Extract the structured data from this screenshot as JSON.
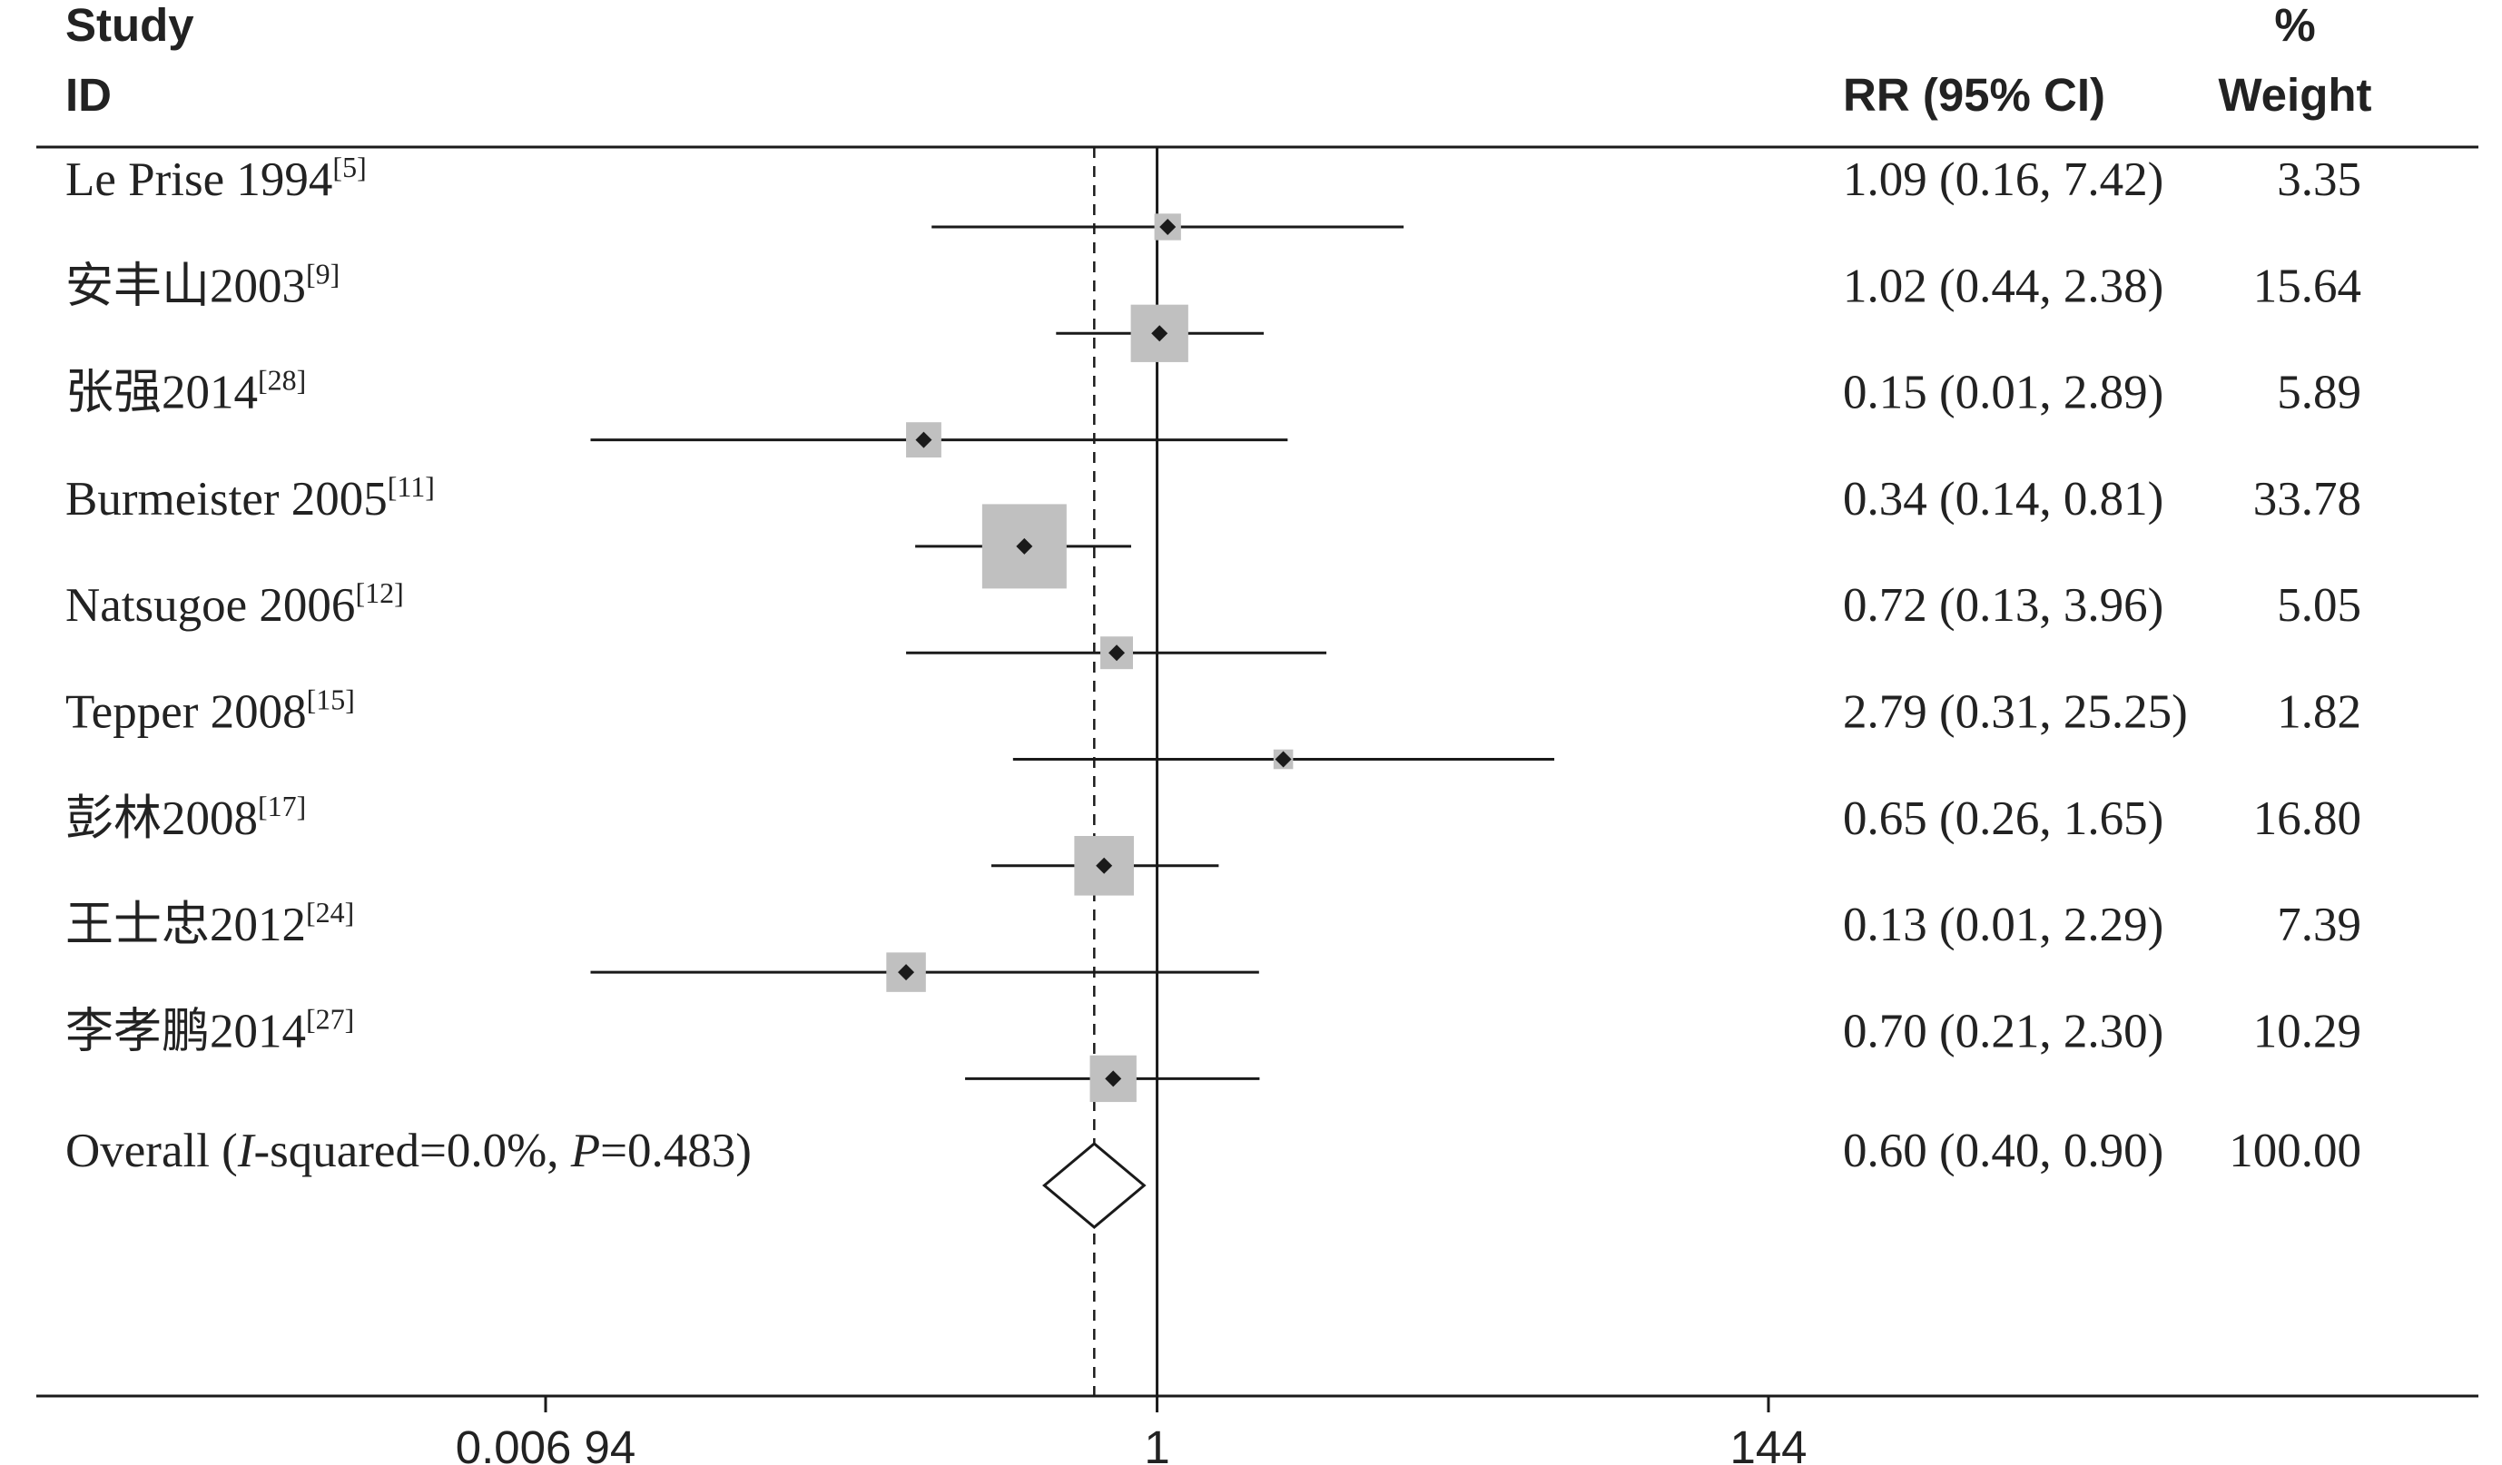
{
  "headers": {
    "study_line1": "Study",
    "study_line2": "ID",
    "rr_label": "RR (95% CI)",
    "weight_line1": "%",
    "weight_line2": "Weight"
  },
  "chart_data": {
    "type": "forest",
    "scale": "log",
    "xlim": [
      0.00694,
      144
    ],
    "null_line": 1,
    "pooled_line": 0.6,
    "x_ticks": [
      {
        "value": 0.00694,
        "label": "0.006 94"
      },
      {
        "value": 1,
        "label": "1"
      },
      {
        "value": 144,
        "label": "144"
      }
    ],
    "studies": [
      {
        "name": "Le Prise 1994",
        "ref": "[5]",
        "rr": 1.09,
        "lo": 0.16,
        "hi": 7.42,
        "ci_text": "1.09 (0.16, 7.42)",
        "weight": 3.35,
        "weight_text": "3.35"
      },
      {
        "name": "安丰山2003",
        "ref": "[9]",
        "rr": 1.02,
        "lo": 0.44,
        "hi": 2.38,
        "ci_text": "1.02 (0.44, 2.38)",
        "weight": 15.64,
        "weight_text": "15.64"
      },
      {
        "name": "张强2014",
        "ref": "[28]",
        "rr": 0.15,
        "lo": 0.01,
        "hi": 2.89,
        "ci_text": "0.15 (0.01, 2.89)",
        "weight": 5.89,
        "weight_text": "5.89"
      },
      {
        "name": "Burmeister 2005",
        "ref": "[11]",
        "rr": 0.34,
        "lo": 0.14,
        "hi": 0.81,
        "ci_text": "0.34 (0.14, 0.81)",
        "weight": 33.78,
        "weight_text": "33.78"
      },
      {
        "name": "Natsugoe 2006",
        "ref": "[12]",
        "rr": 0.72,
        "lo": 0.13,
        "hi": 3.96,
        "ci_text": "0.72 (0.13, 3.96)",
        "weight": 5.05,
        "weight_text": "5.05"
      },
      {
        "name": "Tepper 2008",
        "ref": "[15]",
        "rr": 2.79,
        "lo": 0.31,
        "hi": 25.25,
        "ci_text": "2.79 (0.31, 25.25)",
        "weight": 1.82,
        "weight_text": "1.82"
      },
      {
        "name": "彭林2008",
        "ref": "[17]",
        "rr": 0.65,
        "lo": 0.26,
        "hi": 1.65,
        "ci_text": "0.65 (0.26, 1.65)",
        "weight": 16.8,
        "weight_text": "16.80"
      },
      {
        "name": "王士忠2012",
        "ref": "[24]",
        "rr": 0.13,
        "lo": 0.01,
        "hi": 2.29,
        "ci_text": "0.13 (0.01, 2.29)",
        "weight": 7.39,
        "weight_text": "7.39"
      },
      {
        "name": "李孝鹏2014",
        "ref": "[27]",
        "rr": 0.7,
        "lo": 0.21,
        "hi": 2.3,
        "ci_text": "0.70 (0.21, 2.30)",
        "weight": 10.29,
        "weight_text": "10.29"
      }
    ],
    "overall": {
      "label_prefix": "Overall (",
      "i_symbol": "I",
      "i_rest": "-squared=0.0%, ",
      "p_symbol": "P",
      "p_rest": "=0.483)",
      "rr": 0.6,
      "lo": 0.4,
      "hi": 0.9,
      "ci_text": "0.60 (0.40, 0.90)",
      "weight_text": "100.00"
    },
    "colors": {
      "weight_box": "#c0c0c0",
      "line": "#1a1a1a",
      "text": "#222222"
    }
  }
}
